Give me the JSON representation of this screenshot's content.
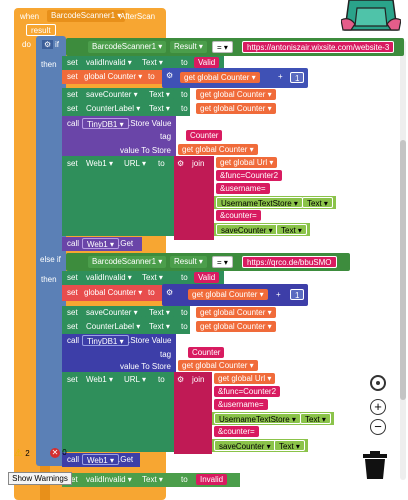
{
  "event": {
    "when": "when",
    "component": "BarcodeScanner1",
    "event": "AfterScan",
    "param": "result",
    "do": "do"
  },
  "kw": {
    "if": "if",
    "then": "then",
    "else_if": "else if",
    "set": "set",
    "to": "to",
    "call": "call",
    "get": "get",
    "join": "join",
    "eq": "=",
    "plus": "+",
    "tag": "tag",
    "value_to_store": "value To Store",
    "url_label": "URL",
    "text_prop": "Text",
    "store_value": ".Store Value",
    "get_method": ".Get"
  },
  "block1": {
    "cmp_component": "BarcodeScanner1",
    "cmp_prop": "Result",
    "cmp_value": "https://antoniszair.wixsite.com/website-3",
    "set1_comp": "validInvalid",
    "set1_value": "Valid",
    "counter_var": "global Counter",
    "counter_get": "global Counter",
    "counter_add": "1",
    "set3_comp": "saveCounter",
    "set3_value": "global Counter",
    "set4_comp": "CounterLabel",
    "set4_value": "global Counter",
    "db": "TinyDB1",
    "tag_value": "Counter",
    "store_get": "global Counter",
    "web": "Web1",
    "join_url": "global Url",
    "s1": "&func=Counter2",
    "s2": "&username=",
    "s3_comp": "UsernameTextStore",
    "s4": "&counter=",
    "s5_comp": "saveCounter",
    "call_web": "Web1"
  },
  "block2": {
    "cmp_component": "BarcodeScanner1",
    "cmp_prop": "Result",
    "cmp_value": "https://qrco.de/bbuSMO",
    "set1_comp": "validInvalid",
    "set1_value": "Valid",
    "counter_var": "global Counter",
    "counter_get": "global Counter",
    "counter_add": "1",
    "set3_comp": "saveCounter",
    "set3_value": "global Counter",
    "set4_comp": "CounterLabel",
    "set4_value": "global Counter",
    "db": "TinyDB1",
    "tag_value": "Counter",
    "store_get": "global Counter",
    "web": "Web1",
    "join_url": "global Url",
    "s1": "&func=Counter2",
    "s2": "&username=",
    "s3_comp": "UsernameTextStore",
    "s4": "&counter=",
    "s5_comp": "saveCounter",
    "call_web": "Web1"
  },
  "last_set": {
    "comp": "validInvalid",
    "value": "Invalid"
  },
  "warnings": {
    "warn_count": "2",
    "error_count": "0",
    "toggle": "Show Warnings"
  }
}
